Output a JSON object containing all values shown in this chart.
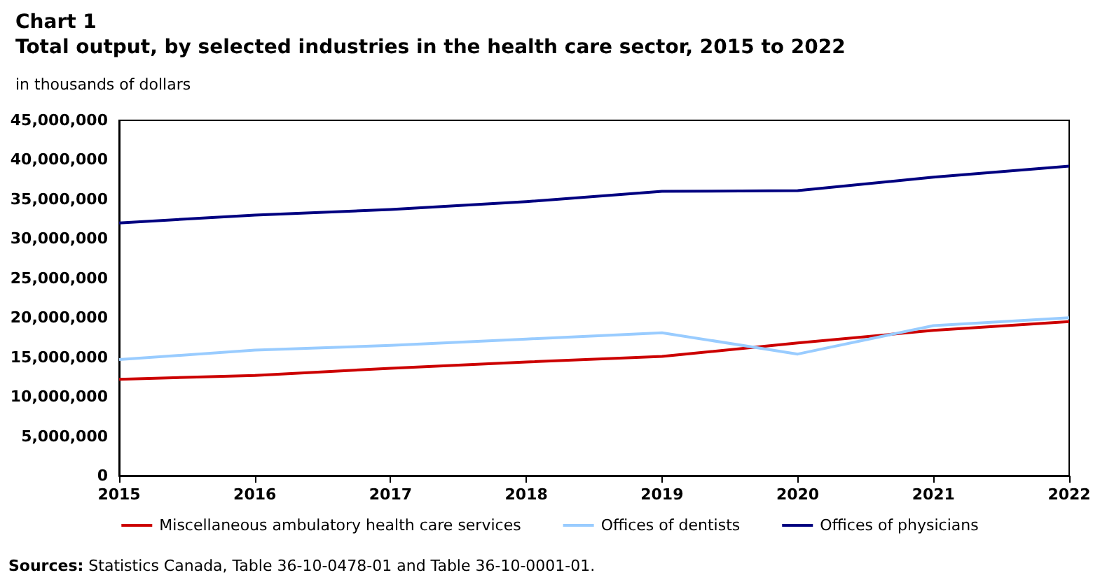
{
  "chart_data": {
    "type": "line",
    "title": "Chart 1",
    "subtitle": "Total output, by selected industries in the health care sector, 2015 to 2022",
    "ylabel": "in thousands of dollars",
    "categories": [
      "2015",
      "2016",
      "2017",
      "2018",
      "2019",
      "2020",
      "2021",
      "2022"
    ],
    "series": [
      {
        "name": "Miscellaneous ambulatory health care services",
        "color": "#cc0000",
        "values": [
          12200000,
          12700000,
          13600000,
          14400000,
          15100000,
          16800000,
          18400000,
          19500000
        ]
      },
      {
        "name": "Offices of dentists",
        "color": "#99ccff",
        "values": [
          14700000,
          15900000,
          16500000,
          17300000,
          18100000,
          15400000,
          19000000,
          20000000
        ]
      },
      {
        "name": "Offices of physicians",
        "color": "#000080",
        "values": [
          32000000,
          33000000,
          33700000,
          34700000,
          36000000,
          36100000,
          37800000,
          39200000
        ]
      }
    ],
    "ylim": [
      0,
      45000000
    ],
    "yticks": [
      0,
      {
        "value": 5000000,
        "label": "5,000,000"
      },
      {
        "value": 10000000,
        "label": "10,000,000"
      },
      {
        "value": 15000000,
        "label": "15,000,000"
      },
      {
        "value": 20000000,
        "label": "20,000,000"
      },
      {
        "value": 25000000,
        "label": "25,000,000"
      },
      {
        "value": 30000000,
        "label": "30,000,000"
      },
      {
        "value": 35000000,
        "label": "35,000,000"
      },
      {
        "value": 40000000,
        "label": "40,000,000"
      },
      {
        "value": 45000000,
        "label": "45,000,000"
      }
    ],
    "grid": false,
    "legend": "bottom",
    "marker": "none",
    "line_style": "solid",
    "annotations": [
      "Sources: Statistics Canada, Table 36-10-0478-01 and Table 36-10-0001-01."
    ]
  }
}
